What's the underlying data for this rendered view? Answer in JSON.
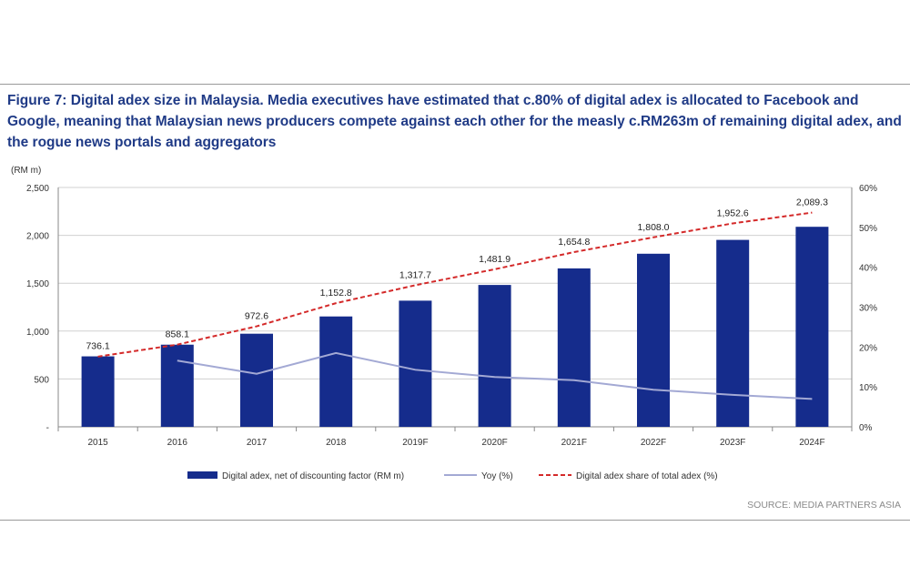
{
  "title": "Figure 7: Digital adex size in Malaysia. Media executives have estimated that c.80% of digital adex is allocated to Facebook and Google, meaning that Malaysian news producers compete against each other for the measly c.RM263m of remaining digital adex, and the rogue news portals and aggregators",
  "source": "SOURCE: MEDIA PARTNERS ASIA",
  "chart_data": {
    "type": "bar",
    "categories": [
      "2015",
      "2016",
      "2017",
      "2018",
      "2019F",
      "2020F",
      "2021F",
      "2022F",
      "2023F",
      "2024F"
    ],
    "y_unit_label": "(RM m)",
    "ylim": [
      0,
      2500
    ],
    "y_ticks": [
      0,
      500,
      1000,
      1500,
      2000,
      2500
    ],
    "y_tick_labels": [
      "-",
      "500",
      "1,000",
      "1,500",
      "2,000",
      "2,500"
    ],
    "y2lim": [
      0,
      60
    ],
    "y2_ticks": [
      0,
      10,
      20,
      30,
      40,
      50,
      60
    ],
    "y2_tick_labels": [
      "0%",
      "10%",
      "20%",
      "30%",
      "40%",
      "50%",
      "60%"
    ],
    "grid": true,
    "legend_position": "bottom",
    "series": [
      {
        "name": "Digital adex, net of discounting factor (RM m)",
        "kind": "bar",
        "axis": "left",
        "color": "#152c8c",
        "values": [
          736.1,
          858.1,
          972.6,
          1152.8,
          1317.7,
          1481.9,
          1654.8,
          1808.0,
          1952.6,
          2089.3
        ],
        "labels": [
          "736.1",
          "858.1",
          "972.6",
          "1,152.8",
          "1,317.7",
          "1,481.9",
          "1,654.8",
          "1,808.0",
          "1,952.6",
          "2,089.3"
        ]
      },
      {
        "name": "Yoy (%)",
        "kind": "line",
        "axis": "right",
        "color": "#a3a9d4",
        "values": [
          null,
          16.6,
          13.3,
          18.5,
          14.3,
          12.5,
          11.7,
          9.3,
          8.0,
          7.0
        ]
      },
      {
        "name": "Digital adex share of total adex (%)",
        "kind": "dashed-line",
        "axis": "right",
        "color": "#d42a2a",
        "values": [
          17.6,
          20.6,
          25.2,
          31.0,
          35.5,
          39.5,
          43.8,
          47.5,
          51.0,
          53.7
        ]
      }
    ]
  }
}
